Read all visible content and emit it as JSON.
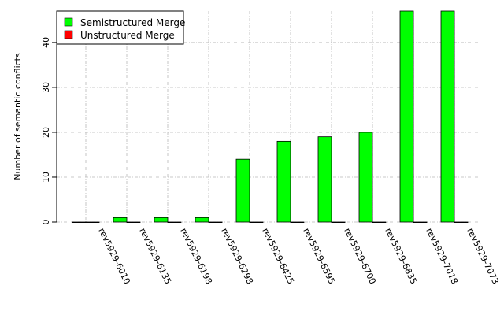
{
  "chart_data": {
    "type": "bar",
    "title": "",
    "xlabel": "",
    "ylabel": "Number of semantic conflicts",
    "ylim": [
      0,
      47
    ],
    "yticks": [
      0,
      10,
      20,
      30,
      40
    ],
    "grid": true,
    "legend_position": "top-left",
    "categories": [
      "rev5929-6010",
      "rev5929-6135",
      "rev5929-6198",
      "rev5929-6298",
      "rev5929-6425",
      "rev5929-6595",
      "rev5929-6700",
      "rev5929-6835",
      "rev5929-7018",
      "rev5929-7073"
    ],
    "series": [
      {
        "name": "Semistructured Merge",
        "color": "#00ff00",
        "values": [
          0,
          1,
          1,
          1,
          14,
          18,
          19,
          20,
          47,
          47
        ]
      },
      {
        "name": "Unstructured Merge",
        "color": "#ff0000",
        "values": [
          0,
          0,
          0,
          0,
          0,
          0,
          0,
          0,
          0,
          0
        ]
      }
    ]
  }
}
